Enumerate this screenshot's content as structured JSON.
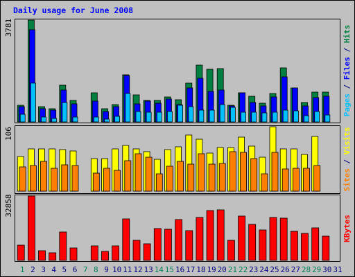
{
  "chart_data": {
    "type": "bar",
    "title": "Daily usage for June 2008",
    "categories": [
      "1",
      "2",
      "3",
      "4",
      "5",
      "6",
      "7",
      "8",
      "9",
      "10",
      "11",
      "12",
      "13",
      "14",
      "15",
      "16",
      "17",
      "18",
      "19",
      "20",
      "21",
      "22",
      "23",
      "24",
      "25",
      "26",
      "27",
      "28",
      "29",
      "30",
      "31"
    ],
    "weekend_days": [
      "1",
      "7",
      "8",
      "14",
      "15",
      "21",
      "22",
      "28",
      "29"
    ],
    "top_panel": {
      "max_label": "3781",
      "ymax": 3781,
      "series": [
        {
          "name": "Hits",
          "color": "#008040",
          "values": [
            620,
            3781,
            560,
            480,
            1370,
            800,
            null,
            1070,
            500,
            640,
            1760,
            1010,
            800,
            790,
            920,
            830,
            1450,
            2100,
            1960,
            1970,
            620,
            1080,
            950,
            700,
            1060,
            2010,
            1270,
            710,
            1100,
            1110,
            null
          ]
        },
        {
          "name": "Files",
          "color": "#0000ff",
          "values": [
            560,
            3410,
            490,
            430,
            1180,
            680,
            null,
            760,
            380,
            570,
            1730,
            680,
            780,
            690,
            860,
            640,
            1260,
            1620,
            1130,
            1190,
            580,
            1070,
            720,
            600,
            920,
            1680,
            1260,
            600,
            890,
            960,
            null
          ]
        },
        {
          "name": "Pages",
          "color": "#00c0ff",
          "values": [
            280,
            1450,
            170,
            120,
            720,
            180,
            null,
            180,
            110,
            210,
            1060,
            390,
            370,
            350,
            380,
            610,
            560,
            430,
            450,
            640,
            540,
            360,
            350,
            330,
            350,
            450,
            420,
            240,
            380,
            270,
            null
          ]
        }
      ],
      "axis_labels": [
        {
          "text": "Pages",
          "color": "#00c0ff"
        },
        {
          "text": " / ",
          "color": "#000080"
        },
        {
          "text": "Files",
          "color": "#0000ff"
        },
        {
          "text": " / ",
          "color": "#000080"
        },
        {
          "text": "Hits",
          "color": "#008040"
        }
      ]
    },
    "middle_panel": {
      "max_label": "106",
      "ymax": 106,
      "series": [
        {
          "name": "Visits",
          "color": "#ffff00",
          "values": [
            57,
            69,
            70,
            69,
            68,
            66,
            null,
            53,
            53,
            70,
            75,
            70,
            65,
            52,
            68,
            73,
            92,
            86,
            63,
            72,
            72,
            89,
            74,
            56,
            106,
            69,
            70,
            60,
            90,
            null,
            null
          ]
        },
        {
          "name": "Sites",
          "color": "#ff8000",
          "values": [
            40,
            42,
            49,
            38,
            43,
            42,
            null,
            30,
            38,
            34,
            50,
            61,
            56,
            28,
            41,
            49,
            45,
            61,
            45,
            46,
            65,
            64,
            54,
            29,
            64,
            36,
            38,
            38,
            42,
            null,
            null
          ]
        }
      ],
      "axis_labels": [
        {
          "text": "Sites",
          "color": "#ff8000"
        },
        {
          "text": " / ",
          "color": "#000080"
        },
        {
          "text": "Visits",
          "color": "#ffff00"
        }
      ]
    },
    "bottom_panel": {
      "max_label": "32858",
      "ymax": 32858,
      "series": [
        {
          "name": "KBytes",
          "color": "#ff0000",
          "values": [
            7800,
            32858,
            5000,
            3900,
            14500,
            6500,
            null,
            7500,
            4600,
            7300,
            21200,
            10100,
            8500,
            16400,
            16000,
            20700,
            15200,
            21800,
            25500,
            25900,
            10300,
            22600,
            18500,
            15400,
            21800,
            21500,
            14800,
            13800,
            16700,
            12200,
            null
          ]
        }
      ],
      "axis_labels": [
        {
          "text": "KBytes",
          "color": "#ff0000"
        }
      ]
    }
  }
}
